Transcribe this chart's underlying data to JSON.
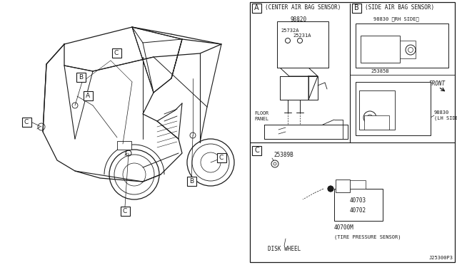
{
  "bg_color": "#ffffff",
  "line_color": "#1a1a1a",
  "label_A_title": "(CENTER AIR BAG SENSOR)",
  "label_B_title": "(SIDE AIR BAG SENSOR)",
  "part_98820": "98820",
  "part_25732A": "25732A",
  "part_25231A": "25231A",
  "floor_panel": "FLOOR\nPANEL",
  "part_98830_rh": "98830 〈RH SIDE〉",
  "part_25385B_rh": "25385B",
  "part_25385B_lh": "25385B",
  "part_98830_lh": "98830\n(LH SIDE)",
  "front_label": "FRONT",
  "part_25389B": "25389B",
  "part_40703": "40703",
  "part_40702": "40702",
  "part_40700M": "40700M",
  "disk_wheel": "DISK WHEEL",
  "tire_sensor": "(TIRE PRESSURE SENSOR)",
  "part_code": "J25300P3"
}
